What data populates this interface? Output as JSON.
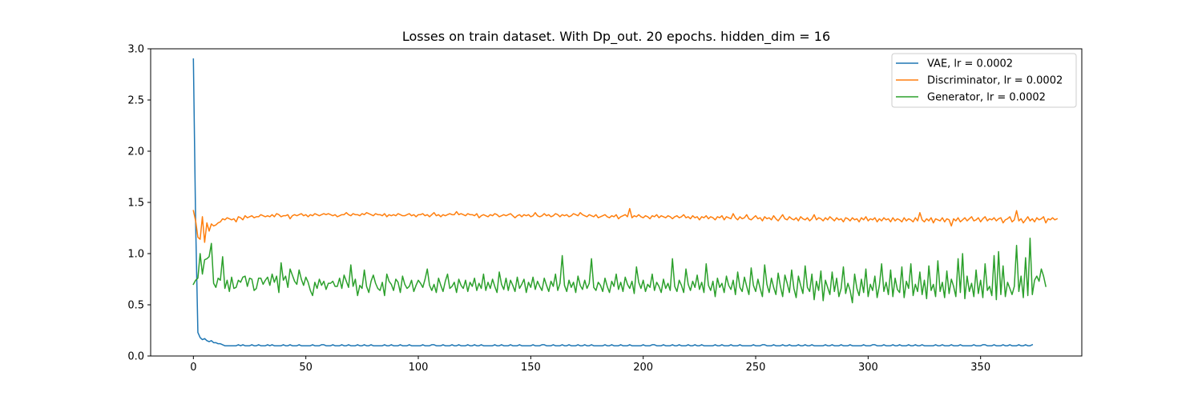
{
  "chart_data": {
    "type": "line",
    "title": "Losses on train dataset. With Dp_out. 20 epochs. hidden_dim = 16",
    "xlabel": "",
    "ylabel": "",
    "xlim": [
      -19,
      395
    ],
    "ylim": [
      0,
      3.0
    ],
    "xticks": [
      0,
      50,
      100,
      150,
      200,
      250,
      300,
      350
    ],
    "yticks": [
      0.0,
      0.5,
      1.0,
      1.5,
      2.0,
      2.5,
      3.0
    ],
    "ytick_labels": [
      "0.0",
      "0.5",
      "1.0",
      "1.5",
      "2.0",
      "2.5",
      "3.0"
    ],
    "grid": false,
    "legend_position": "upper-right",
    "n_points": 376,
    "series": [
      {
        "name": "VAE, lr = 0.0002",
        "color": "#1f77b4",
        "values": [
          2.9,
          1.3,
          0.23,
          0.18,
          0.16,
          0.17,
          0.15,
          0.14,
          0.15,
          0.13,
          0.13,
          0.12,
          0.12,
          0.11,
          0.1,
          0.1,
          0.1,
          0.1,
          0.1,
          0.1,
          0.11,
          0.1,
          0.11,
          0.1,
          0.1,
          0.1,
          0.11,
          0.1,
          0.1,
          0.11,
          0.1,
          0.1,
          0.1,
          0.11,
          0.1,
          0.11,
          0.1,
          0.1,
          0.1,
          0.1,
          0.11,
          0.1,
          0.1,
          0.11,
          0.1,
          0.1,
          0.1,
          0.11,
          0.1,
          0.1,
          0.1,
          0.1,
          0.1,
          0.11,
          0.1,
          0.1,
          0.1,
          0.11,
          0.11,
          0.1,
          0.1,
          0.1,
          0.11,
          0.1,
          0.1,
          0.1,
          0.11,
          0.1,
          0.1,
          0.11,
          0.1,
          0.1,
          0.1,
          0.11,
          0.1,
          0.1,
          0.11,
          0.1,
          0.1,
          0.11,
          0.1,
          0.1,
          0.1,
          0.1,
          0.1,
          0.11,
          0.1,
          0.1,
          0.11,
          0.1,
          0.1,
          0.1,
          0.11,
          0.1,
          0.1,
          0.1,
          0.11,
          0.1,
          0.1,
          0.1,
          0.1,
          0.1,
          0.11,
          0.1,
          0.1,
          0.1,
          0.11,
          0.11,
          0.1,
          0.1,
          0.1,
          0.11,
          0.1,
          0.1,
          0.1,
          0.11,
          0.1,
          0.1,
          0.11,
          0.1,
          0.1,
          0.1,
          0.11,
          0.1,
          0.1,
          0.11,
          0.1,
          0.1,
          0.11,
          0.1,
          0.1,
          0.1,
          0.1,
          0.1,
          0.11,
          0.1,
          0.1,
          0.11,
          0.1,
          0.1,
          0.1,
          0.11,
          0.1,
          0.1,
          0.1,
          0.11,
          0.1,
          0.1,
          0.1,
          0.1,
          0.1,
          0.11,
          0.1,
          0.1,
          0.1,
          0.11,
          0.11,
          0.1,
          0.1,
          0.1,
          0.11,
          0.1,
          0.1,
          0.1,
          0.11,
          0.1,
          0.1,
          0.11,
          0.1,
          0.1,
          0.1,
          0.11,
          0.1,
          0.1,
          0.11,
          0.1,
          0.1,
          0.11,
          0.1,
          0.1,
          0.1,
          0.1,
          0.1,
          0.11,
          0.1,
          0.1,
          0.11,
          0.1,
          0.1,
          0.1,
          0.11,
          0.1,
          0.1,
          0.1,
          0.11,
          0.1,
          0.1,
          0.1,
          0.1,
          0.1,
          0.11,
          0.1,
          0.1,
          0.1,
          0.11,
          0.11,
          0.1,
          0.1,
          0.1,
          0.11,
          0.1,
          0.1,
          0.1,
          0.11,
          0.1,
          0.1,
          0.11,
          0.1,
          0.1,
          0.1,
          0.11,
          0.1,
          0.1,
          0.11,
          0.1,
          0.1,
          0.11,
          0.1,
          0.1,
          0.1,
          0.1,
          0.1,
          0.11,
          0.1,
          0.1,
          0.11,
          0.1,
          0.1,
          0.1,
          0.11,
          0.1,
          0.1,
          0.1,
          0.11,
          0.1,
          0.1,
          0.1,
          0.1,
          0.1,
          0.11,
          0.1,
          0.1,
          0.1,
          0.11,
          0.11,
          0.1,
          0.1,
          0.1,
          0.11,
          0.1,
          0.1,
          0.1,
          0.11,
          0.1,
          0.1,
          0.11,
          0.1,
          0.1,
          0.1,
          0.11,
          0.1,
          0.1,
          0.11,
          0.1,
          0.1,
          0.11,
          0.1,
          0.1,
          0.1,
          0.1,
          0.1,
          0.11,
          0.1,
          0.1,
          0.11,
          0.1,
          0.1,
          0.1,
          0.11,
          0.1,
          0.1,
          0.1,
          0.11,
          0.1,
          0.1,
          0.1,
          0.1,
          0.1,
          0.11,
          0.1,
          0.1,
          0.1,
          0.11,
          0.11,
          0.1,
          0.1,
          0.1,
          0.11,
          0.1,
          0.1,
          0.1,
          0.11,
          0.1,
          0.1,
          0.11,
          0.1,
          0.1,
          0.1,
          0.11,
          0.1,
          0.1,
          0.11,
          0.1,
          0.1,
          0.11,
          0.1,
          0.1,
          0.1,
          0.1,
          0.1,
          0.11,
          0.1,
          0.1,
          0.11,
          0.1,
          0.1,
          0.1,
          0.11,
          0.1,
          0.1,
          0.1,
          0.11,
          0.1,
          0.1,
          0.1,
          0.1,
          0.1,
          0.11,
          0.1,
          0.1,
          0.1,
          0.11,
          0.11,
          0.1,
          0.1,
          0.1,
          0.11,
          0.1,
          0.1,
          0.1,
          0.11,
          0.1,
          0.1,
          0.11,
          0.1,
          0.1,
          0.1,
          0.11,
          0.1,
          0.1,
          0.11,
          0.1,
          0.1,
          0.11
        ]
      },
      {
        "name": "Discriminator, lr = 0.0002",
        "color": "#ff7f0e",
        "values": [
          1.42,
          1.32,
          1.16,
          1.14,
          1.36,
          1.11,
          1.3,
          1.22,
          1.29,
          1.27,
          1.28,
          1.3,
          1.31,
          1.34,
          1.33,
          1.35,
          1.34,
          1.33,
          1.34,
          1.31,
          1.36,
          1.35,
          1.33,
          1.37,
          1.35,
          1.36,
          1.37,
          1.35,
          1.36,
          1.36,
          1.38,
          1.37,
          1.36,
          1.37,
          1.36,
          1.38,
          1.36,
          1.39,
          1.38,
          1.36,
          1.37,
          1.37,
          1.38,
          1.34,
          1.37,
          1.38,
          1.37,
          1.38,
          1.39,
          1.37,
          1.38,
          1.36,
          1.38,
          1.37,
          1.39,
          1.38,
          1.37,
          1.38,
          1.39,
          1.38,
          1.39,
          1.38,
          1.37,
          1.38,
          1.36,
          1.37,
          1.38,
          1.38,
          1.4,
          1.38,
          1.37,
          1.39,
          1.38,
          1.38,
          1.37,
          1.39,
          1.38,
          1.4,
          1.39,
          1.38,
          1.37,
          1.39,
          1.38,
          1.38,
          1.37,
          1.39,
          1.36,
          1.38,
          1.37,
          1.38,
          1.37,
          1.39,
          1.38,
          1.37,
          1.37,
          1.38,
          1.39,
          1.37,
          1.38,
          1.36,
          1.38,
          1.38,
          1.39,
          1.37,
          1.38,
          1.36,
          1.38,
          1.4,
          1.37,
          1.38,
          1.36,
          1.38,
          1.37,
          1.38,
          1.39,
          1.38,
          1.38,
          1.41,
          1.38,
          1.39,
          1.38,
          1.37,
          1.39,
          1.38,
          1.38,
          1.37,
          1.39,
          1.35,
          1.37,
          1.38,
          1.37,
          1.36,
          1.38,
          1.37,
          1.39,
          1.38,
          1.36,
          1.37,
          1.38,
          1.37,
          1.38,
          1.39,
          1.37,
          1.35,
          1.37,
          1.38,
          1.36,
          1.38,
          1.37,
          1.38,
          1.36,
          1.37,
          1.4,
          1.37,
          1.36,
          1.37,
          1.39,
          1.37,
          1.38,
          1.36,
          1.37,
          1.39,
          1.38,
          1.36,
          1.38,
          1.37,
          1.38,
          1.36,
          1.37,
          1.39,
          1.38,
          1.37,
          1.4,
          1.38,
          1.37,
          1.36,
          1.38,
          1.37,
          1.36,
          1.38,
          1.35,
          1.36,
          1.37,
          1.38,
          1.36,
          1.35,
          1.37,
          1.36,
          1.38,
          1.34,
          1.36,
          1.37,
          1.38,
          1.36,
          1.44,
          1.35,
          1.37,
          1.36,
          1.38,
          1.36,
          1.35,
          1.37,
          1.36,
          1.34,
          1.37,
          1.36,
          1.38,
          1.35,
          1.37,
          1.36,
          1.35,
          1.37,
          1.36,
          1.34,
          1.36,
          1.37,
          1.35,
          1.36,
          1.38,
          1.35,
          1.36,
          1.34,
          1.37,
          1.35,
          1.36,
          1.33,
          1.36,
          1.35,
          1.37,
          1.34,
          1.36,
          1.35,
          1.33,
          1.36,
          1.35,
          1.37,
          1.33,
          1.36,
          1.35,
          1.34,
          1.39,
          1.35,
          1.33,
          1.36,
          1.34,
          1.35,
          1.38,
          1.34,
          1.33,
          1.35,
          1.37,
          1.34,
          1.35,
          1.32,
          1.36,
          1.34,
          1.35,
          1.33,
          1.37,
          1.34,
          1.32,
          1.35,
          1.38,
          1.34,
          1.33,
          1.36,
          1.34,
          1.33,
          1.35,
          1.32,
          1.36,
          1.34,
          1.33,
          1.35,
          1.32,
          1.34,
          1.38,
          1.33,
          1.35,
          1.34,
          1.32,
          1.35,
          1.33,
          1.36,
          1.34,
          1.32,
          1.35,
          1.33,
          1.34,
          1.31,
          1.35,
          1.34,
          1.32,
          1.35,
          1.33,
          1.34,
          1.31,
          1.35,
          1.33,
          1.36,
          1.32,
          1.34,
          1.33,
          1.35,
          1.31,
          1.34,
          1.32,
          1.35,
          1.33,
          1.34,
          1.31,
          1.35,
          1.32,
          1.34,
          1.33,
          1.31,
          1.35,
          1.32,
          1.34,
          1.33,
          1.31,
          1.35,
          1.32,
          1.4,
          1.33,
          1.31,
          1.34,
          1.32,
          1.35,
          1.3,
          1.34,
          1.33,
          1.32,
          1.35,
          1.31,
          1.34,
          1.33,
          1.27,
          1.34,
          1.32,
          1.35,
          1.31,
          1.33,
          1.35,
          1.32,
          1.34,
          1.36,
          1.32,
          1.33,
          1.35,
          1.31,
          1.34,
          1.36,
          1.32,
          1.34,
          1.33,
          1.35,
          1.32,
          1.34,
          1.35,
          1.3,
          1.33,
          1.34,
          1.36,
          1.31,
          1.33,
          1.42,
          1.32,
          1.34,
          1.3,
          1.33,
          1.36,
          1.32,
          1.34,
          1.31,
          1.35,
          1.33,
          1.34,
          1.36,
          1.3,
          1.34,
          1.33,
          1.35,
          1.33,
          1.34
        ]
      },
      {
        "name": "Generator, lr = 0.0002",
        "color": "#2ca02c",
        "values": [
          0.7,
          0.74,
          0.76,
          1.0,
          0.8,
          0.94,
          0.95,
          0.97,
          1.1,
          0.71,
          0.67,
          0.76,
          0.74,
          0.97,
          0.66,
          0.74,
          0.63,
          0.77,
          0.66,
          0.67,
          0.74,
          0.72,
          0.77,
          0.78,
          0.68,
          0.76,
          0.75,
          0.64,
          0.66,
          0.76,
          0.76,
          0.7,
          0.74,
          0.77,
          0.69,
          0.8,
          0.72,
          0.78,
          0.62,
          0.91,
          0.74,
          0.78,
          0.67,
          0.85,
          0.79,
          0.73,
          0.7,
          0.84,
          0.75,
          0.69,
          0.77,
          0.72,
          0.64,
          0.59,
          0.72,
          0.66,
          0.75,
          0.69,
          0.73,
          0.65,
          0.71,
          0.71,
          0.73,
          0.68,
          0.68,
          0.76,
          0.66,
          0.79,
          0.73,
          0.67,
          0.89,
          0.68,
          0.75,
          0.59,
          0.69,
          0.66,
          0.84,
          0.68,
          0.62,
          0.73,
          0.79,
          0.71,
          0.66,
          0.64,
          0.72,
          0.59,
          0.8,
          0.73,
          0.7,
          0.64,
          0.75,
          0.72,
          0.62,
          0.78,
          0.7,
          0.66,
          0.68,
          0.74,
          0.63,
          0.69,
          0.74,
          0.71,
          0.67,
          0.75,
          0.85,
          0.69,
          0.64,
          0.7,
          0.62,
          0.76,
          0.69,
          0.63,
          0.73,
          0.8,
          0.66,
          0.68,
          0.72,
          0.62,
          0.75,
          0.69,
          0.66,
          0.74,
          0.63,
          0.72,
          0.68,
          0.76,
          0.64,
          0.71,
          0.66,
          0.8,
          0.64,
          0.72,
          0.66,
          0.75,
          0.68,
          0.62,
          0.82,
          0.7,
          0.65,
          0.76,
          0.64,
          0.74,
          0.69,
          0.63,
          0.77,
          0.66,
          0.7,
          0.75,
          0.62,
          0.72,
          0.67,
          0.77,
          0.65,
          0.73,
          0.68,
          0.64,
          0.76,
          0.69,
          0.63,
          0.73,
          0.68,
          0.8,
          0.64,
          0.71,
          0.98,
          0.69,
          0.63,
          0.74,
          0.67,
          0.72,
          0.62,
          0.78,
          0.69,
          0.65,
          0.74,
          0.66,
          0.71,
          0.95,
          0.67,
          0.64,
          0.72,
          0.69,
          0.63,
          0.76,
          0.68,
          0.62,
          0.73,
          0.68,
          0.8,
          0.65,
          0.72,
          0.63,
          0.77,
          0.7,
          0.66,
          0.73,
          0.61,
          0.87,
          0.72,
          0.66,
          0.74,
          0.63,
          0.7,
          0.67,
          0.8,
          0.64,
          0.72,
          0.68,
          0.62,
          0.75,
          0.66,
          0.71,
          0.64,
          0.95,
          0.68,
          0.63,
          0.74,
          0.69,
          0.62,
          0.85,
          0.7,
          0.64,
          0.73,
          0.67,
          0.79,
          0.65,
          0.72,
          0.62,
          0.9,
          0.69,
          0.64,
          0.73,
          0.58,
          0.76,
          0.67,
          0.71,
          0.62,
          0.78,
          0.69,
          0.65,
          0.74,
          0.6,
          0.82,
          0.67,
          0.63,
          0.77,
          0.68,
          0.6,
          0.86,
          0.69,
          0.63,
          0.75,
          0.66,
          0.58,
          0.89,
          0.7,
          0.62,
          0.76,
          0.67,
          0.6,
          0.81,
          0.68,
          0.58,
          0.79,
          0.71,
          0.62,
          0.84,
          0.66,
          0.57,
          0.78,
          0.69,
          0.61,
          0.88,
          0.67,
          0.63,
          0.8,
          0.55,
          0.73,
          0.64,
          0.83,
          0.54,
          0.74,
          0.67,
          0.6,
          0.82,
          0.63,
          0.76,
          0.58,
          0.66,
          0.87,
          0.61,
          0.71,
          0.64,
          0.52,
          0.8,
          0.66,
          0.59,
          0.75,
          0.62,
          0.85,
          0.58,
          0.7,
          0.64,
          0.78,
          0.57,
          0.69,
          0.9,
          0.63,
          0.72,
          0.6,
          0.84,
          0.58,
          0.76,
          0.65,
          0.62,
          0.87,
          0.57,
          0.73,
          0.66,
          0.9,
          0.59,
          0.7,
          0.63,
          0.82,
          0.6,
          0.74,
          0.56,
          0.88,
          0.64,
          0.7,
          0.58,
          0.93,
          0.63,
          0.72,
          0.57,
          0.83,
          0.61,
          0.75,
          0.68,
          0.58,
          0.95,
          0.62,
          1.0,
          0.56,
          0.78,
          0.63,
          0.71,
          0.58,
          0.84,
          0.61,
          0.74,
          0.57,
          0.9,
          0.64,
          0.68,
          0.59,
          0.98,
          0.55,
          1.02,
          0.6,
          0.88,
          0.58,
          0.72,
          0.66,
          0.6,
          0.68,
          1.08,
          0.63,
          0.78,
          0.57,
          0.96,
          0.59,
          1.15,
          0.6,
          0.74,
          0.78,
          0.73,
          0.85,
          0.78,
          0.68
        ]
      }
    ]
  }
}
